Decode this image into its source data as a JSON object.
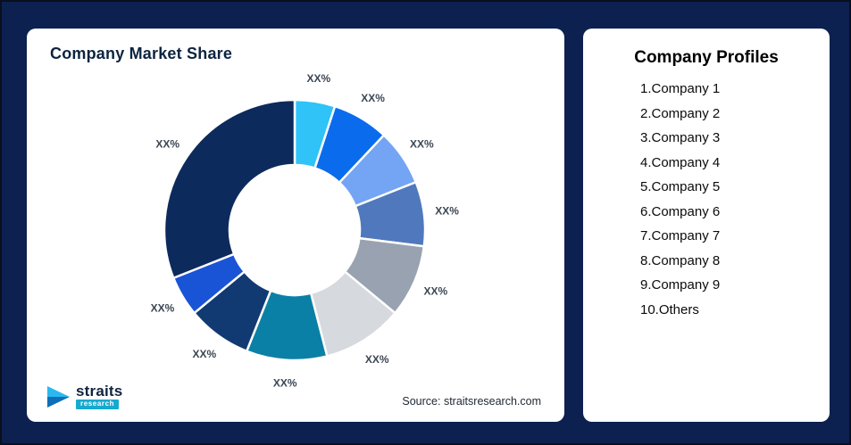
{
  "page": {
    "background": "#0d2150"
  },
  "left_card": {
    "title": "Company Market Share",
    "source": "Source: straitsresearch.com",
    "logo": {
      "brand": "straits",
      "brand_sub": "research"
    }
  },
  "right_card": {
    "title": "Company Profiles",
    "items": [
      "1.Company 1",
      "2.Company 2",
      "3.Company 3",
      "4.Company 4",
      "5.Company 5",
      "6.Company 6",
      "7.Company 7",
      "8.Company 8",
      "9.Company 9",
      "10.Others"
    ]
  },
  "chart_data": {
    "type": "pie",
    "subtype": "donut",
    "title": "Company Market Share",
    "legend_position": "none",
    "value_labels": "placeholder percentages",
    "segments": [
      {
        "label": "XX%",
        "value": 5,
        "color": "#2fc3f8"
      },
      {
        "label": "XX%",
        "value": 7,
        "color": "#0a6cec"
      },
      {
        "label": "XX%",
        "value": 7,
        "color": "#74a4f4"
      },
      {
        "label": "XX%",
        "value": 8,
        "color": "#5078bd"
      },
      {
        "label": "XX%",
        "value": 9,
        "color": "#99a2b0"
      },
      {
        "label": "XX%",
        "value": 10,
        "color": "#d6d9dd"
      },
      {
        "label": "XX%",
        "value": 10,
        "color": "#0b80a6"
      },
      {
        "label": "XX%",
        "value": 8,
        "color": "#123a72"
      },
      {
        "label": "XX%",
        "value": 5,
        "color": "#1a54d6"
      },
      {
        "label": "XX%",
        "value": 31,
        "color": "#0d2a5c"
      }
    ],
    "geometry": {
      "outer_radius": 146,
      "inner_radius": 73,
      "start_angle_deg": -90,
      "direction": "clockwise"
    }
  }
}
